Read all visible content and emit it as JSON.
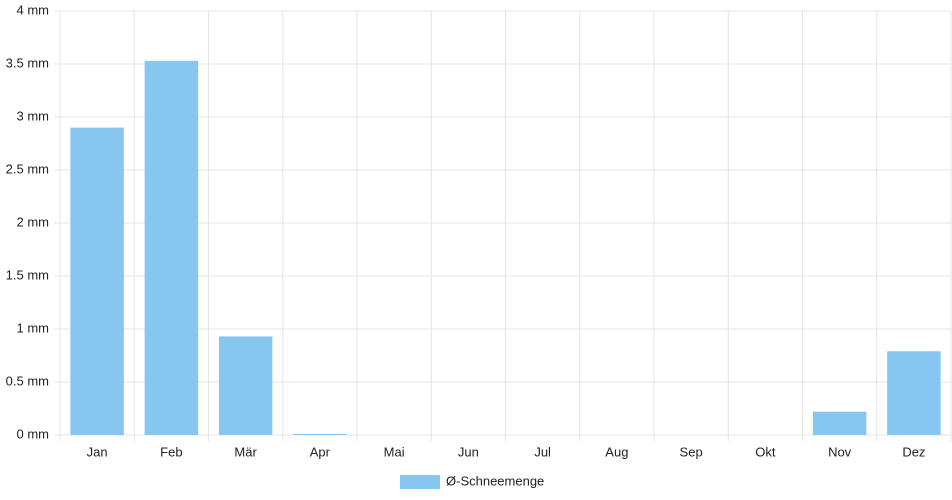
{
  "chart_data": {
    "type": "bar",
    "categories": [
      "Jan",
      "Feb",
      "Mär",
      "Apr",
      "Mai",
      "Jun",
      "Jul",
      "Aug",
      "Sep",
      "Okt",
      "Nov",
      "Dez"
    ],
    "series": [
      {
        "name": "Ø-Schneemenge",
        "color": "#88c6f2",
        "values": [
          2.9,
          3.53,
          0.93,
          0.01,
          0,
          0,
          0,
          0,
          0,
          0,
          0.22,
          0.79
        ]
      }
    ],
    "ylim": [
      0,
      4
    ],
    "yticks": [
      {
        "value": 0,
        "label": "0 mm"
      },
      {
        "value": 0.5,
        "label": "0.5 mm"
      },
      {
        "value": 1,
        "label": "1 mm"
      },
      {
        "value": 1.5,
        "label": "1.5 mm"
      },
      {
        "value": 2,
        "label": "2 mm"
      },
      {
        "value": 2.5,
        "label": "2.5 mm"
      },
      {
        "value": 3,
        "label": "3 mm"
      },
      {
        "value": 3.5,
        "label": "3.5 mm"
      },
      {
        "value": 4,
        "label": "4 mm"
      }
    ],
    "grid": true,
    "legend": "bottom"
  }
}
